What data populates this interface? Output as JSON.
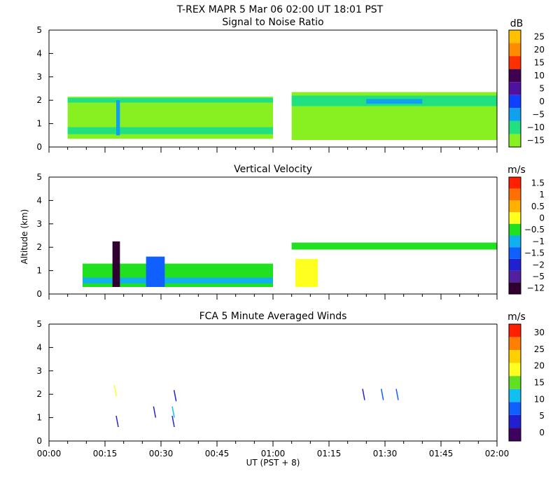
{
  "header": {
    "title": "T-REX   MAPR   5 Mar 06   02:00 UT   18:01   PST"
  },
  "chart_data": [
    {
      "type": "heatmap",
      "title": "Signal to Noise Ratio",
      "xlabel": "",
      "ylabel": "",
      "xlim": [
        0,
        120
      ],
      "ylim": [
        0,
        5
      ],
      "colorbar": {
        "unit": "dB",
        "ticks": [
          "25",
          "20",
          "15",
          "10",
          "5",
          "0",
          "−5",
          "−10",
          "−15"
        ],
        "colors": [
          "#ffc000",
          "#ff8c00",
          "#ff3000",
          "#400050",
          "#5010a0",
          "#1040ff",
          "#10a0f0",
          "#20e080",
          "#88f020"
        ]
      },
      "regions": [
        {
          "t0": 5,
          "t1": 60,
          "z0": 0.35,
          "z1": 2.15,
          "level": "-15"
        },
        {
          "t0": 5,
          "t1": 60,
          "z0": 0.55,
          "z1": 0.85,
          "level": "-10"
        },
        {
          "t0": 5,
          "t1": 60,
          "z0": 1.9,
          "z1": 2.1,
          "level": "-10"
        },
        {
          "t0": 18,
          "t1": 19,
          "z0": 0.5,
          "z1": 2.0,
          "level": "-5"
        },
        {
          "t0": 65,
          "t1": 120,
          "z0": 0.3,
          "z1": 2.35,
          "level": "-15"
        },
        {
          "t0": 65,
          "t1": 120,
          "z0": 1.75,
          "z1": 2.2,
          "level": "-10"
        },
        {
          "t0": 85,
          "t1": 100,
          "z0": 1.85,
          "z1": 2.05,
          "level": "-5"
        }
      ]
    },
    {
      "type": "heatmap",
      "title": "Vertical Velocity",
      "xlabel": "",
      "ylabel": "Altitude (km)",
      "xlim": [
        0,
        120
      ],
      "ylim": [
        0,
        5
      ],
      "colorbar": {
        "unit": "m/s",
        "ticks": [
          "1.5",
          "1",
          "0.5",
          "0",
          "−0.5",
          "−1",
          "−1.5",
          "−2",
          "−5",
          "−12"
        ],
        "colors": [
          "#ff2000",
          "#ff7000",
          "#ffb000",
          "#ffff20",
          "#20e020",
          "#10b0f0",
          "#1060ff",
          "#2020d0",
          "#5020a0",
          "#300030"
        ]
      },
      "regions": [
        {
          "t0": 9,
          "t1": 60,
          "z0": 0.3,
          "z1": 1.3,
          "level": "-0.5"
        },
        {
          "t0": 9,
          "t1": 60,
          "z0": 0.45,
          "z1": 0.7,
          "level": "-1"
        },
        {
          "t0": 17,
          "t1": 19,
          "z0": 0.3,
          "z1": 2.25,
          "level": "-12"
        },
        {
          "t0": 26,
          "t1": 31,
          "z0": 0.3,
          "z1": 1.6,
          "level": "-1.5"
        },
        {
          "t0": 65,
          "t1": 120,
          "z0": 1.9,
          "z1": 2.2,
          "level": "-0.5"
        },
        {
          "t0": 66,
          "t1": 72,
          "z0": 0.3,
          "z1": 1.5,
          "level": "0"
        }
      ]
    },
    {
      "type": "scatter",
      "title": "FCA 5 Minute Averaged Winds",
      "xlabel": "UT  (PST + 8)",
      "ylabel": "",
      "xlim": [
        0,
        120
      ],
      "ylim": [
        0,
        5
      ],
      "x_tick_labels": [
        "00:00",
        "00:15",
        "00:30",
        "00:45",
        "01:00",
        "01:15",
        "01:30",
        "01:45",
        "02:00"
      ],
      "y_tick_labels": [
        "0",
        "1",
        "2",
        "3",
        "4",
        "5"
      ],
      "colorbar": {
        "unit": "m/s",
        "ticks": [
          "30",
          "25",
          "20",
          "15",
          "10",
          "5",
          "0"
        ],
        "colors": [
          "#ff2000",
          "#ff8000",
          "#ffd000",
          "#ffff20",
          "#60e020",
          "#10c0f0",
          "#1060ff",
          "#2020d0",
          "#400060"
        ]
      },
      "barbs": [
        {
          "t": 17.5,
          "z": 1.9,
          "speed": 20
        },
        {
          "t": 18,
          "z": 0.6,
          "speed": 3
        },
        {
          "t": 28,
          "z": 1.0,
          "speed": 3
        },
        {
          "t": 33,
          "z": 1.0,
          "speed": 10
        },
        {
          "t": 33,
          "z": 0.6,
          "speed": 5
        },
        {
          "t": 33.5,
          "z": 1.7,
          "speed": 2
        },
        {
          "t": 84,
          "z": 1.75,
          "speed": 5
        },
        {
          "t": 89,
          "z": 1.75,
          "speed": 8
        },
        {
          "t": 93,
          "z": 1.75,
          "speed": 6
        }
      ]
    }
  ]
}
